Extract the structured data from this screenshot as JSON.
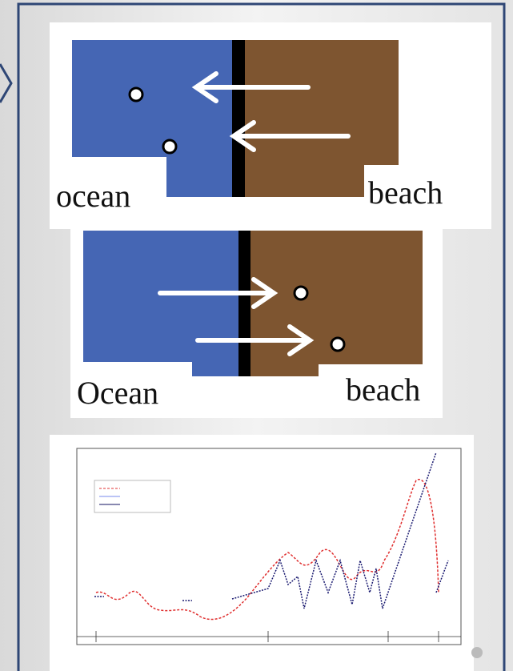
{
  "diagrams": [
    {
      "left_label": "ocean",
      "right_label": "beach"
    },
    {
      "left_label": "Ocean",
      "right_label": "beach"
    }
  ]
}
